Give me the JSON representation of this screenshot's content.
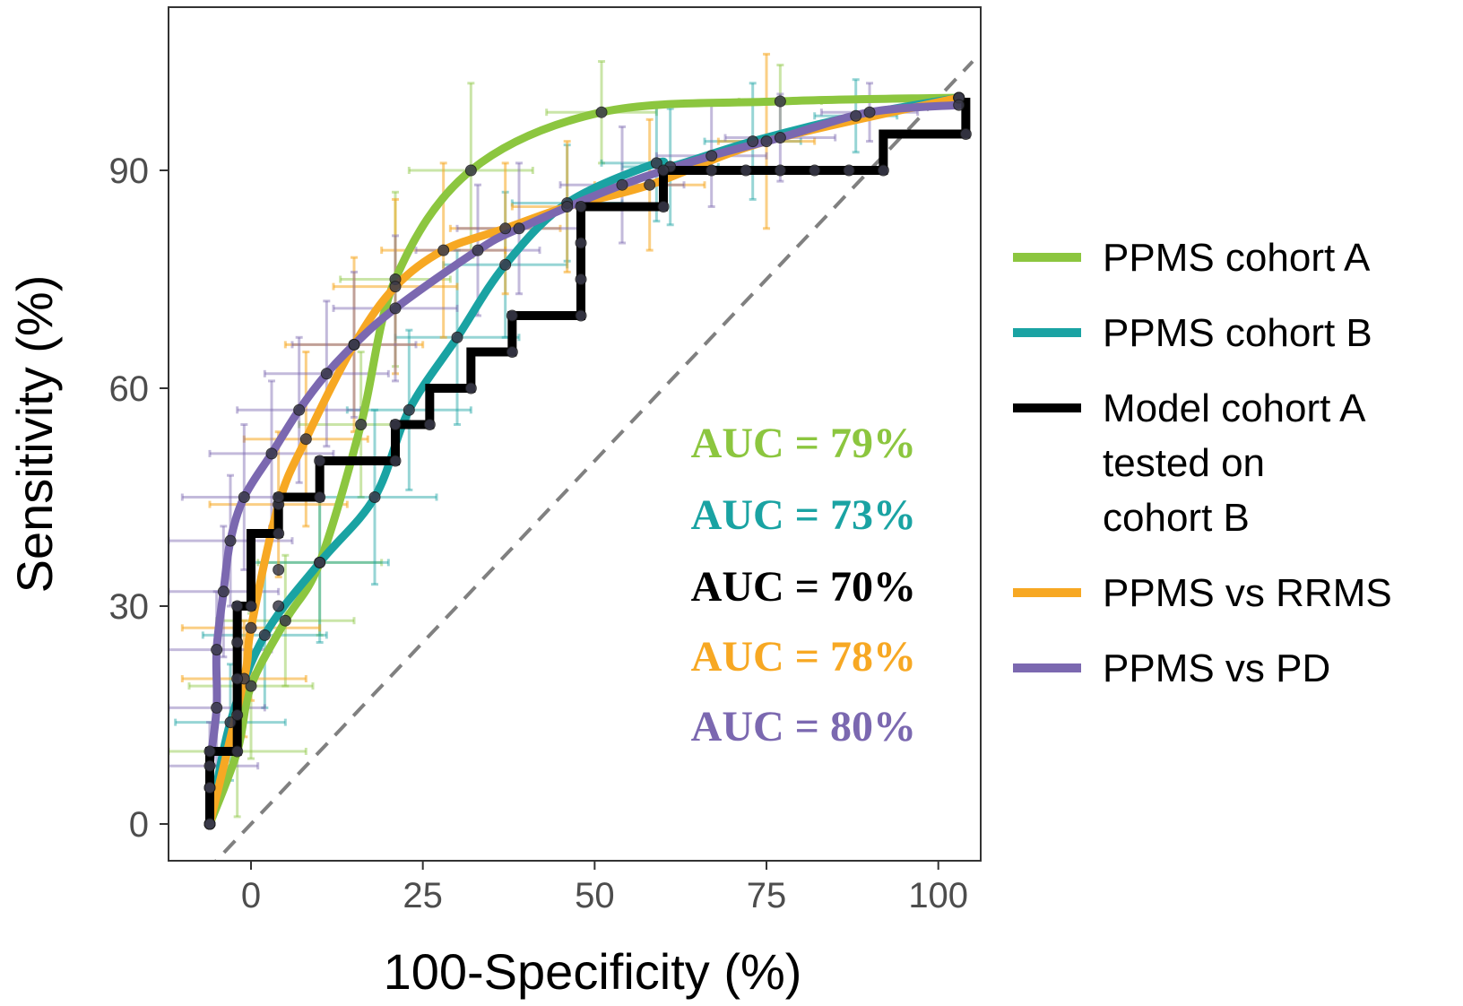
{
  "chart_data": {
    "type": "line",
    "title": "",
    "xlabel": "100-Specificity (%)",
    "ylabel": "Sensitivity (%)",
    "xlim": [
      -12,
      105
    ],
    "ylim": [
      -5,
      113
    ],
    "xticks": [
      0,
      25,
      50,
      75,
      100
    ],
    "yticks": [
      0,
      30,
      60,
      90
    ],
    "xtick_labels": [
      "0",
      "25",
      "50",
      "75",
      "100"
    ],
    "ytick_labels": [
      "0",
      "30",
      "60",
      "90"
    ],
    "grid": false,
    "legend_position": "right",
    "diagonal_reference": true,
    "series": [
      {
        "name": "PPMS cohort A",
        "color": "#8cc63f",
        "auc_label": "AUC = 79%",
        "x": [
          -6,
          -2,
          0,
          5,
          10,
          16,
          21,
          32,
          51,
          77,
          103
        ],
        "y": [
          0,
          10,
          19,
          28,
          36,
          55,
          75,
          90,
          98,
          99.5,
          100
        ],
        "err_x": [
          0,
          10,
          9,
          10,
          9,
          9,
          8,
          9,
          8,
          6,
          0
        ],
        "err_y": [
          0,
          9,
          10,
          9,
          10,
          10,
          12,
          12,
          7,
          5,
          0
        ]
      },
      {
        "name": "PPMS cohort B",
        "color": "#1aa3a3",
        "auc_label": "AUC = 73%",
        "x": [
          -6,
          -3,
          2,
          10,
          18,
          23,
          30,
          37,
          46,
          59,
          61,
          73,
          88,
          103
        ],
        "y": [
          0,
          14,
          26,
          36,
          45,
          57,
          67,
          77,
          85.5,
          91,
          90.5,
          94,
          97.5,
          100
        ],
        "err_x": [
          0,
          8,
          9,
          10,
          9,
          9,
          9,
          9,
          8,
          8,
          7,
          7,
          6,
          0
        ],
        "err_y": [
          0,
          8,
          10,
          11,
          12,
          11,
          12,
          10,
          8,
          8,
          8,
          8,
          5,
          0
        ]
      },
      {
        "name": "Model cohort A tested on cohort B",
        "color": "#000000",
        "auc_label": "AUC = 70%",
        "step": true,
        "x": [
          -6,
          -6,
          -2,
          -2,
          0,
          0,
          4,
          4,
          10,
          10,
          21,
          21,
          26,
          26,
          32,
          32,
          38,
          38,
          48,
          48,
          60,
          60,
          92,
          92,
          104,
          104
        ],
        "y": [
          0,
          10,
          10,
          30,
          30,
          40,
          40,
          45,
          45,
          50,
          50,
          55,
          55,
          60,
          60,
          65,
          65,
          70,
          70,
          85,
          85,
          90,
          90,
          95,
          95,
          100
        ],
        "marker_x": [
          -6,
          -6,
          -6,
          -2,
          -2,
          -2,
          -2,
          0,
          4,
          4,
          4,
          4,
          10,
          10,
          21,
          21,
          26,
          32,
          38,
          38,
          48,
          48,
          48,
          48,
          60,
          60,
          67,
          72,
          77,
          82,
          87,
          92,
          104
        ],
        "marker_y": [
          0,
          5,
          10,
          15,
          20,
          25,
          30,
          30,
          30,
          35,
          40,
          45,
          45,
          50,
          50,
          55,
          55,
          60,
          65,
          70,
          70,
          75,
          80,
          85,
          85,
          90,
          90,
          90,
          90,
          90,
          90,
          90,
          95
        ]
      },
      {
        "name": "PPMS vs RRMS",
        "color": "#f7a823",
        "auc_label": "AUC = 78%",
        "x": [
          -6,
          -1,
          0,
          4,
          8,
          15,
          21,
          28,
          37,
          46,
          58,
          75,
          103
        ],
        "y": [
          0,
          20,
          27,
          44,
          53,
          66,
          74,
          79,
          82,
          85,
          88,
          94,
          100
        ],
        "err_x": [
          0,
          9,
          10,
          10,
          9,
          10,
          9,
          9,
          8,
          8,
          8,
          7,
          0
        ],
        "err_y": [
          0,
          8,
          10,
          10,
          12,
          12,
          12,
          12,
          9,
          9,
          9,
          12,
          0
        ],
        "err_alpha": 0.55
      },
      {
        "name": "PPMS vs PD",
        "color": "#7b68b0",
        "auc_label": "AUC = 80%",
        "x": [
          -6,
          -6,
          -5,
          -5,
          -4,
          -3,
          -1,
          3,
          7,
          11,
          15,
          21,
          33,
          39,
          54,
          67,
          77,
          90,
          103
        ],
        "y": [
          5,
          8,
          16,
          24,
          32,
          39,
          45,
          51,
          57,
          62,
          66,
          71,
          79,
          82,
          88,
          92,
          94.5,
          98,
          99
        ],
        "err_x": [
          0,
          7,
          7,
          8,
          8,
          9,
          9,
          9,
          9,
          9,
          9,
          9,
          9,
          9,
          9,
          8,
          8,
          7,
          0
        ],
        "err_y": [
          0,
          6,
          8,
          8,
          9,
          9,
          10,
          10,
          10,
          10,
          10,
          10,
          9,
          9,
          8,
          7,
          6,
          4,
          0
        ]
      }
    ]
  },
  "legend": {
    "items": [
      {
        "lines": [
          "PPMS cohort A"
        ],
        "color": "#8cc63f"
      },
      {
        "lines": [
          "PPMS cohort B"
        ],
        "color": "#1aa3a3"
      },
      {
        "lines": [
          "Model cohort A",
          "tested on",
          "cohort B"
        ],
        "color": "#000000"
      },
      {
        "lines": [
          "PPMS vs RRMS"
        ],
        "color": "#f7a823"
      },
      {
        "lines": [
          "PPMS vs PD"
        ],
        "color": "#7b68b0"
      }
    ]
  },
  "colors": {
    "diagonal": "#808080",
    "axis": "#333333",
    "marker": "#3a3a4a"
  }
}
